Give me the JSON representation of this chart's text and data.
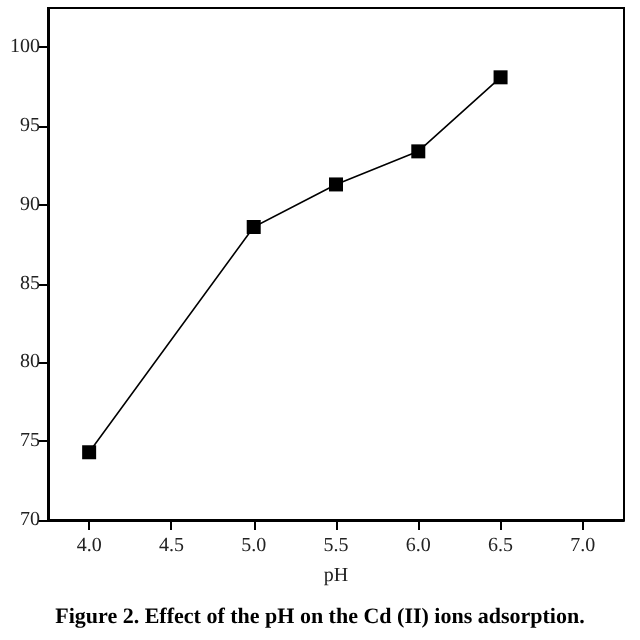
{
  "chart_data": {
    "type": "line",
    "xlabel": "pH",
    "annotations": [
      "Figure 2. Effect of the pH on the Cd (II) ions adsorption."
    ],
    "x": [
      4.0,
      5.0,
      5.5,
      6.0,
      6.5
    ],
    "series": [
      {
        "color": "#000000",
        "values": [
          74.3,
          88.6,
          91.3,
          93.4,
          98.1
        ]
      }
    ],
    "xlim": [
      3.75,
      7.25
    ],
    "xticks": [
      {
        "value": 4,
        "label": "4.0"
      },
      {
        "value": 4.5,
        "label": "4.5"
      },
      {
        "value": 5,
        "label": "5.0"
      },
      {
        "value": 5.5,
        "label": "5.5"
      },
      {
        "value": 6,
        "label": "6.0"
      },
      {
        "value": 6.5,
        "label": "6.5"
      },
      {
        "value": 7,
        "label": "7.0"
      }
    ],
    "ylim": [
      70,
      102.5
    ],
    "yticks": [
      70,
      75,
      80,
      85,
      90,
      95,
      100
    ],
    "grid": false,
    "marker": "square",
    "line_style": "solid"
  }
}
